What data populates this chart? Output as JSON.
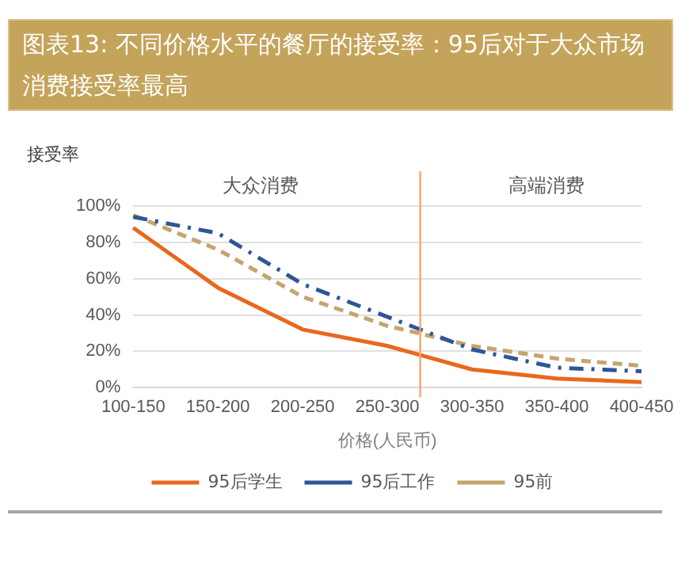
{
  "chart_data": {
    "type": "line",
    "title": "图表13: 不同价格水平的餐厅的接受率：95后对于大众市场消费接受率最高",
    "ylabel": "接受率",
    "xlabel": "价格(人民币)",
    "categories": [
      "100-150",
      "150-200",
      "200-250",
      "250-300",
      "300-350",
      "350-400",
      "400-450"
    ],
    "series": [
      {
        "name": "95后学生",
        "color": "#e8681e",
        "line_style": "solid",
        "values": [
          88,
          55,
          32,
          23,
          10,
          5,
          3
        ]
      },
      {
        "name": "95后工作",
        "color": "#2f5597",
        "line_style": "dashdot",
        "values": [
          94,
          85,
          57,
          39,
          21,
          11,
          9
        ]
      },
      {
        "name": "95前",
        "color": "#c5a46e",
        "line_style": "dashed",
        "values": [
          95,
          76,
          50,
          34,
          23,
          16,
          12
        ]
      }
    ],
    "ylim": [
      0,
      100
    ],
    "yticks": [
      {
        "value": 0,
        "label": "0%"
      },
      {
        "value": 20,
        "label": "20%"
      },
      {
        "value": 40,
        "label": "40%"
      },
      {
        "value": 60,
        "label": "60%"
      },
      {
        "value": 80,
        "label": "80%"
      },
      {
        "value": 100,
        "label": "100%"
      }
    ],
    "grid": "y",
    "legend": "bottom",
    "marker": "none",
    "ref_lines": [
      {
        "axis": "x",
        "value": "250-300",
        "label": null,
        "color": "#f4a470"
      }
    ],
    "annotations": [
      "大众消费",
      "高端消费"
    ]
  }
}
